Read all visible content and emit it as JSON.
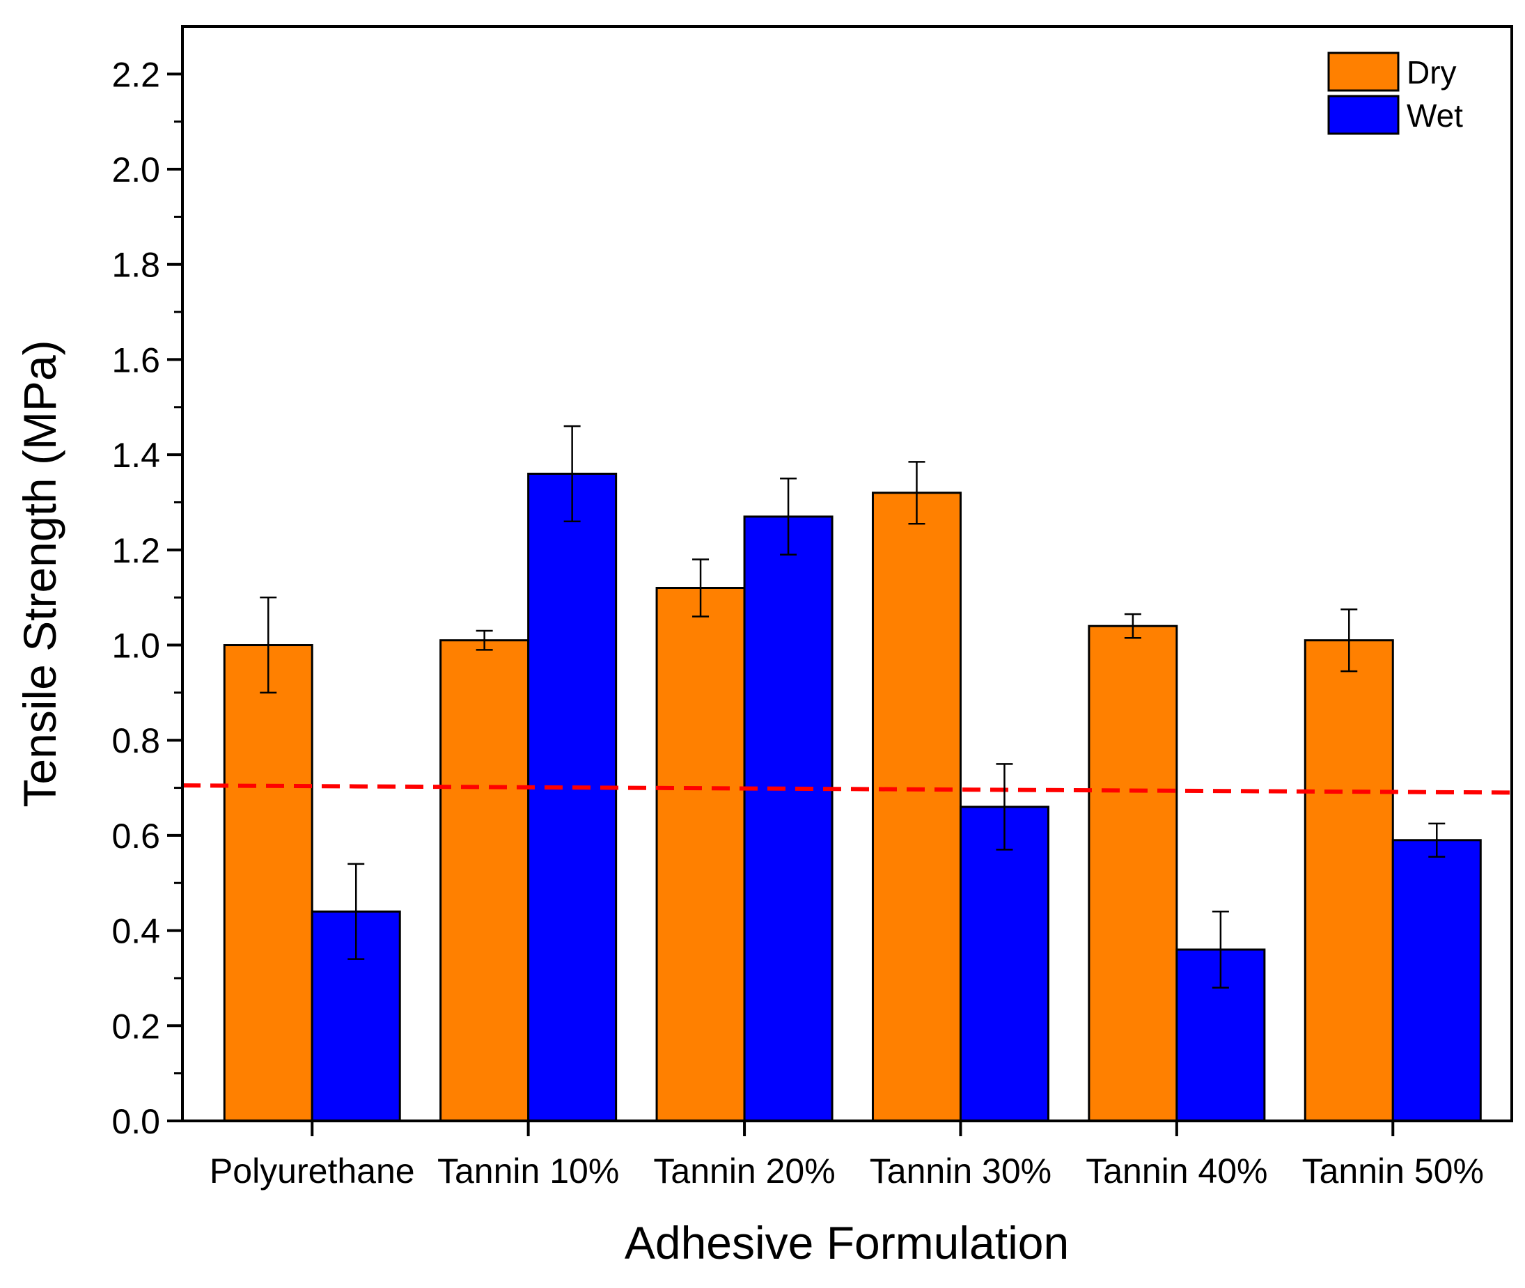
{
  "chart_data": {
    "type": "bar",
    "title": "",
    "xlabel": "Adhesive Formulation",
    "ylabel": "Tensile Strength (MPa)",
    "ylim": [
      0,
      2.3
    ],
    "yticks": [
      "0.0",
      "0.2",
      "0.4",
      "0.6",
      "0.8",
      "1.0",
      "1.2",
      "1.4",
      "1.6",
      "1.8",
      "2.0",
      "2.2"
    ],
    "categories": [
      "Polyurethane",
      "Tannin 10%",
      "Tannin 20%",
      "Tannin 30%",
      "Tannin 40%",
      "Tannin 50%"
    ],
    "series": [
      {
        "name": "Dry",
        "color": "#FF8000",
        "values": [
          1.0,
          1.01,
          1.12,
          1.32,
          1.04,
          1.01
        ],
        "errors": [
          0.1,
          0.02,
          0.06,
          0.065,
          0.025,
          0.065
        ]
      },
      {
        "name": "Wet",
        "color": "#0000FF",
        "values": [
          0.44,
          1.36,
          1.27,
          0.66,
          0.36,
          0.59
        ],
        "errors": [
          0.1,
          0.1,
          0.08,
          0.09,
          0.08,
          0.035
        ]
      }
    ],
    "reference_line": {
      "color": "#FF0000",
      "style": "dashed",
      "start": 0.705,
      "end": 0.69
    },
    "legend_position": "top-right",
    "grid": false
  }
}
